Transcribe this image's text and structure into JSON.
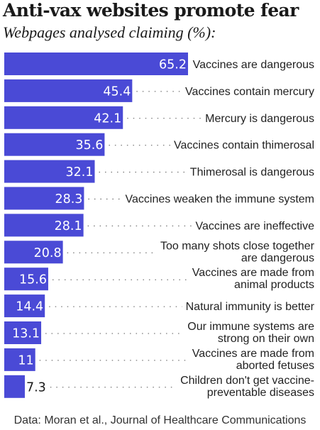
{
  "title": "Anti-vax websites promote fear",
  "subtitle": "Webpages analysed claiming (%):",
  "source": "Data: Moran et al., Journal of Healthcare Communications",
  "colors": {
    "bar": "#4a4ad6",
    "value_text": "#ffffff",
    "value_text_outside": "#1a1a1a",
    "leader": "#555555"
  },
  "chart_data": {
    "type": "bar",
    "orientation": "horizontal",
    "title": "Anti-vax websites promote fear",
    "subtitle": "Webpages analysed claiming (%):",
    "xlim": [
      0,
      65.2
    ],
    "grid": false,
    "categories": [
      [
        "Vaccines are dangerous"
      ],
      [
        "Vaccines contain mercury"
      ],
      [
        "Mercury is dangerous"
      ],
      [
        "Vaccines contain thimerosal"
      ],
      [
        "Thimerosal is dangerous"
      ],
      [
        "Vaccines weaken the immune system"
      ],
      [
        "Vaccines are ineffective"
      ],
      [
        "Too many shots close together",
        "are dangerous"
      ],
      [
        "Vaccines are made from",
        "animal products"
      ],
      [
        "Natural immunity is better"
      ],
      [
        "Our immune systems are",
        "strong on their own"
      ],
      [
        "Vaccines are made from",
        "aborted fetuses"
      ],
      [
        "Children don't get vaccine-",
        "preventable diseases"
      ]
    ],
    "values": [
      65.2,
      45.4,
      42.1,
      35.6,
      32.1,
      28.3,
      28.1,
      20.8,
      15.6,
      14.4,
      13.1,
      11,
      7.3
    ],
    "value_labels": [
      "65.2",
      "45.4",
      "42.1",
      "35.6",
      "32.1",
      "28.3",
      "28.1",
      "20.8",
      "15.6",
      "14.4",
      "13.1",
      "11",
      "7.3"
    ]
  }
}
